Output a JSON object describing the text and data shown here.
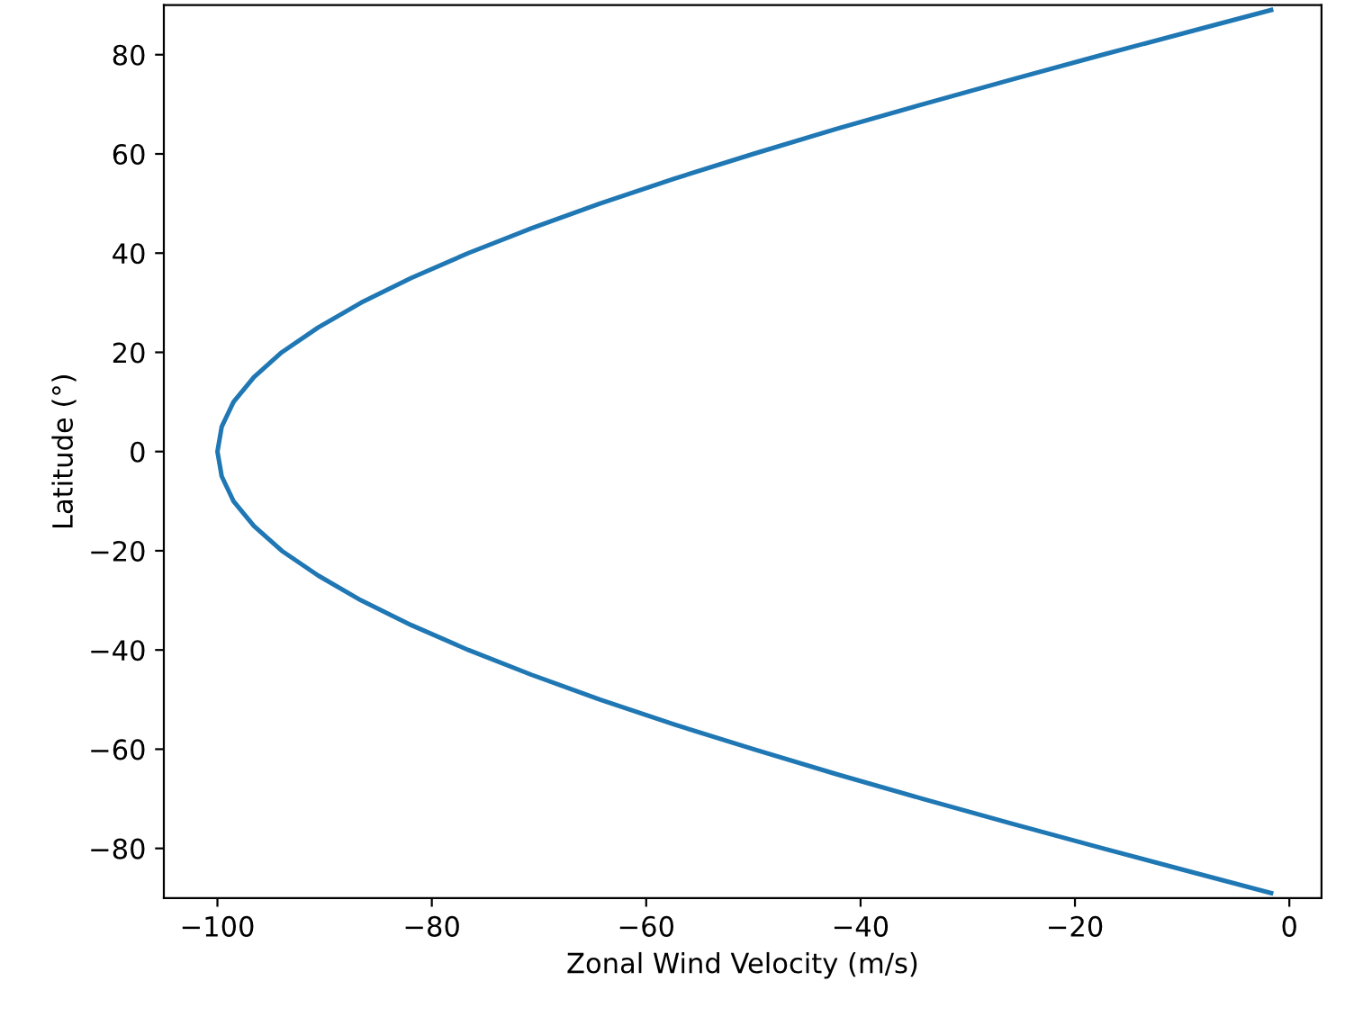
{
  "chart_data": {
    "type": "line",
    "xlabel": "Zonal Wind Velocity (m/s)",
    "ylabel": "Latitude (°)",
    "series": [
      {
        "color": "#1f77b4",
        "x": [
          -1.7,
          -8.7,
          -17.4,
          -25.9,
          -34.2,
          -42.3,
          -50.0,
          -57.4,
          -64.3,
          -70.7,
          -76.6,
          -81.9,
          -86.6,
          -90.6,
          -94.0,
          -96.6,
          -98.5,
          -99.6,
          -100,
          -99.6,
          -98.5,
          -96.6,
          -94.0,
          -90.6,
          -86.6,
          -81.9,
          -76.6,
          -70.7,
          -64.3,
          -57.4,
          -50.0,
          -42.3,
          -34.2,
          -25.9,
          -17.4,
          -8.7,
          -1.7
        ],
        "values": [
          -89,
          -85,
          -80,
          -75,
          -70,
          -65,
          -60,
          -55,
          -50,
          -45,
          -40,
          -35,
          -30,
          -25,
          -20,
          -15,
          -10,
          -5,
          0,
          5,
          10,
          15,
          20,
          25,
          30,
          35,
          40,
          45,
          50,
          55,
          60,
          65,
          70,
          75,
          80,
          85,
          89
        ]
      }
    ],
    "xlim": [
      -105,
      3
    ],
    "xticks": [
      -100,
      -80,
      -60,
      -40,
      -20,
      0
    ],
    "ylim": [
      -90,
      90
    ],
    "yticks": [
      -80,
      -60,
      -40,
      -20,
      0,
      20,
      40,
      60,
      80
    ],
    "grid": false,
    "legend": false
  }
}
